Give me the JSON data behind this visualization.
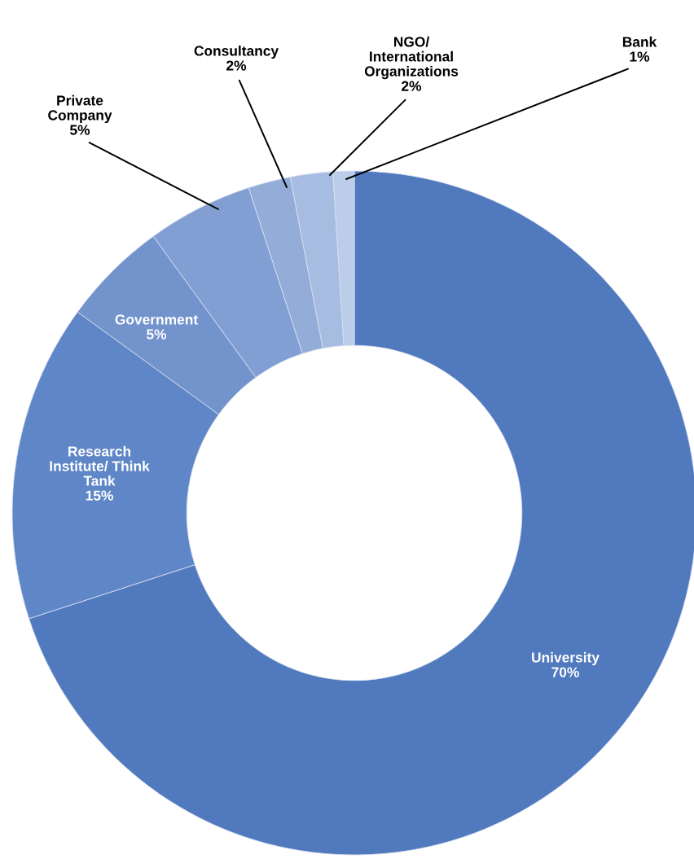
{
  "chart_data": {
    "type": "donut",
    "categories": [
      "University",
      "Research\nInstitute/ Think\nTank",
      "Government",
      "Private\nCompany",
      "Consultancy",
      "NGO/\nInternational\nOrganizations",
      "Bank"
    ],
    "values": [
      70,
      15,
      5,
      5,
      2,
      2,
      1
    ],
    "value_labels": [
      "70%",
      "15%",
      "5%",
      "5%",
      "2%",
      "2%",
      "1%"
    ],
    "colors": [
      "#5079be",
      "#5f86c6",
      "#7293cc",
      "#819fd2",
      "#93acd8",
      "#a6bde1",
      "#bccde9"
    ],
    "legend": false
  }
}
